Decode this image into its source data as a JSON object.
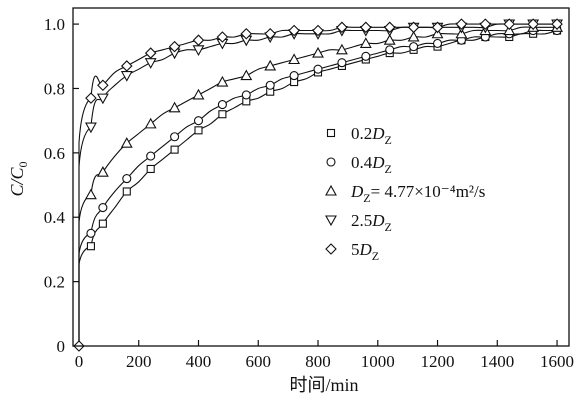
{
  "chart_data": {
    "type": "line",
    "xlabel": "时间/min",
    "ylabel_main": "C/C",
    "ylabel_sub": "0",
    "xlim": [
      -20,
      1640
    ],
    "ylim": [
      0,
      1.05
    ],
    "xticks": [
      0,
      200,
      400,
      600,
      800,
      1000,
      1200,
      1400,
      1600
    ],
    "xtick_labels": [
      "0",
      "200",
      "400",
      "600",
      "800",
      "1000",
      "1200",
      "1400",
      "1600"
    ],
    "yticks": [
      0,
      0.2,
      0.4,
      0.6,
      0.8,
      1.0
    ],
    "ytick_labels": [
      "0",
      "0.2",
      "0.4",
      "0.6",
      "0.8",
      "1.0"
    ],
    "legend_position": "center-right",
    "x": [
      0,
      40,
      80,
      120,
      160,
      200,
      240,
      280,
      320,
      360,
      400,
      440,
      480,
      520,
      560,
      600,
      640,
      680,
      720,
      760,
      800,
      840,
      880,
      920,
      960,
      1000,
      1040,
      1080,
      1120,
      1160,
      1200,
      1240,
      1280,
      1320,
      1360,
      1400,
      1440,
      1480,
      1520,
      1560,
      1600
    ],
    "series": [
      {
        "name_main": "0.2D",
        "name_sub": "Z",
        "name_rest": "",
        "marker": "square",
        "curve": {
          "a": 0.12,
          "b": 0.00175
        },
        "values": [
          0.0,
          0.31,
          0.38,
          0.43,
          0.48,
          0.51,
          0.55,
          0.58,
          0.61,
          0.64,
          0.67,
          0.69,
          0.72,
          0.74,
          0.76,
          0.77,
          0.79,
          0.8,
          0.82,
          0.83,
          0.85,
          0.86,
          0.87,
          0.88,
          0.89,
          0.9,
          0.91,
          0.91,
          0.92,
          0.93,
          0.93,
          0.94,
          0.95,
          0.95,
          0.96,
          0.96,
          0.96,
          0.97,
          0.97,
          0.97,
          0.98
        ]
      },
      {
        "name_main": "0.4D",
        "name_sub": "Z",
        "name_rest": "",
        "marker": "circle",
        "curve": {
          "a": 0.16,
          "b": 0.00185
        },
        "values": [
          0.0,
          0.35,
          0.43,
          0.48,
          0.52,
          0.56,
          0.59,
          0.62,
          0.65,
          0.68,
          0.7,
          0.73,
          0.75,
          0.77,
          0.78,
          0.8,
          0.81,
          0.83,
          0.84,
          0.85,
          0.86,
          0.87,
          0.88,
          0.89,
          0.9,
          0.91,
          0.92,
          0.93,
          0.93,
          0.94,
          0.94,
          0.95,
          0.95,
          0.96,
          0.96,
          0.97,
          0.97,
          0.97,
          0.98,
          0.98,
          0.98
        ]
      },
      {
        "name_main": "D",
        "name_sub": "Z",
        "name_rest": "= 4.77×10⁻⁴m²/s",
        "marker": "triangle-up",
        "curve": {
          "a": 0.25,
          "b": 0.00205
        },
        "values": [
          0.0,
          0.47,
          0.54,
          0.59,
          0.63,
          0.66,
          0.69,
          0.72,
          0.74,
          0.76,
          0.78,
          0.8,
          0.82,
          0.83,
          0.84,
          0.86,
          0.87,
          0.88,
          0.89,
          0.9,
          0.91,
          0.92,
          0.92,
          0.93,
          0.94,
          0.94,
          0.95,
          0.95,
          0.96,
          0.96,
          0.97,
          0.97,
          0.97,
          0.98,
          0.98,
          0.98,
          0.98,
          0.99,
          0.99,
          0.99,
          0.99
        ]
      },
      {
        "name_main": "2.5D",
        "name_sub": "Z",
        "name_rest": "",
        "marker": "triangle-down",
        "curve": {
          "a": 0.4,
          "b": 0.00245
        },
        "values": [
          0.0,
          0.68,
          0.77,
          0.81,
          0.84,
          0.86,
          0.88,
          0.89,
          0.91,
          0.92,
          0.92,
          0.93,
          0.94,
          0.94,
          0.95,
          0.95,
          0.96,
          0.96,
          0.97,
          0.97,
          0.97,
          0.97,
          0.98,
          0.98,
          0.98,
          0.98,
          0.98,
          0.99,
          0.99,
          0.99,
          0.99,
          0.99,
          0.99,
          0.99,
          0.99,
          1.0,
          1.0,
          1.0,
          1.0,
          1.0,
          1.0
        ]
      },
      {
        "name_main": "5D",
        "name_sub": "Z",
        "name_rest": "",
        "marker": "diamond",
        "curve": {
          "a": 0.6,
          "b": 0.0028
        },
        "values": [
          0.0,
          0.77,
          0.81,
          0.85,
          0.87,
          0.89,
          0.91,
          0.92,
          0.93,
          0.94,
          0.95,
          0.95,
          0.96,
          0.96,
          0.97,
          0.97,
          0.97,
          0.98,
          0.98,
          0.98,
          0.98,
          0.98,
          0.99,
          0.99,
          0.99,
          0.99,
          0.99,
          0.99,
          0.99,
          0.99,
          0.99,
          1.0,
          1.0,
          1.0,
          1.0,
          1.0,
          1.0,
          1.0,
          1.0,
          1.0,
          1.0
        ]
      }
    ]
  }
}
